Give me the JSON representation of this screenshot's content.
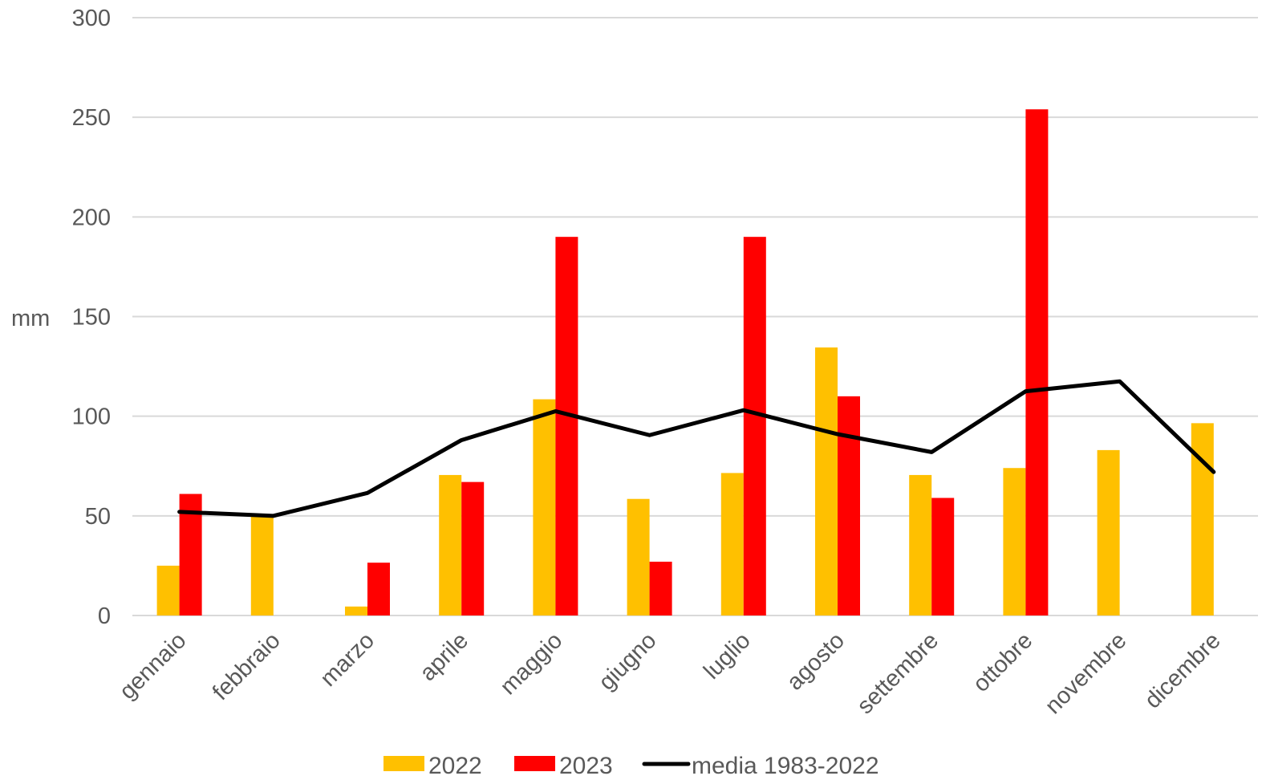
{
  "chart_data": {
    "type": "bar",
    "ylabel": "mm",
    "ylim": [
      0,
      300
    ],
    "yticks": [
      0,
      50,
      100,
      150,
      200,
      250,
      300
    ],
    "grid": true,
    "legend_position": "bottom",
    "categories": [
      "gennaio",
      "febbraio",
      "marzo",
      "aprile",
      "maggio",
      "giugno",
      "luglio",
      "agosto",
      "settembre",
      "ottobre",
      "novembre",
      "dicembre"
    ],
    "series": [
      {
        "name": "2022",
        "type": "bar",
        "color": "#FFC000",
        "values": [
          25,
          50,
          4.5,
          70.5,
          108.5,
          58.5,
          71.5,
          134.5,
          70.5,
          74,
          83,
          96.5
        ]
      },
      {
        "name": "2023",
        "type": "bar",
        "color": "#FF0000",
        "values": [
          61,
          0,
          26.5,
          67,
          190,
          27,
          190,
          110,
          59,
          254,
          0,
          0
        ]
      },
      {
        "name": "media 1983-2022",
        "type": "line",
        "color": "#000000",
        "values": [
          52,
          50,
          61.5,
          88,
          102.5,
          90.5,
          103,
          91,
          82,
          112.5,
          117.5,
          72
        ]
      }
    ]
  }
}
